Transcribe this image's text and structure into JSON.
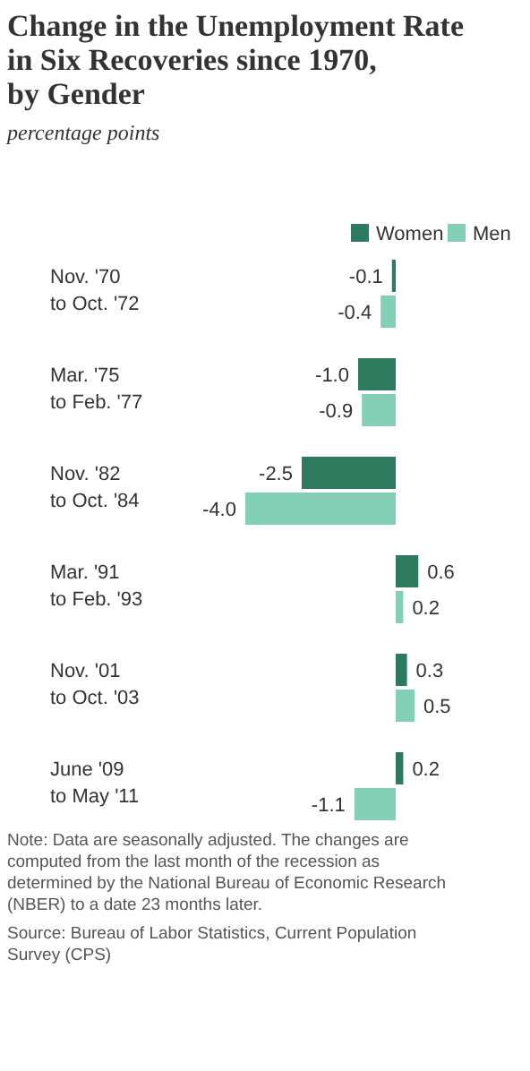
{
  "chart_data": {
    "type": "bar",
    "orientation": "horizontal",
    "title": "Change in the Unemployment Rate\nin Six Recoveries since 1970,\nby Gender",
    "subtitle": "percentage points",
    "categories": [
      "Nov. '70\nto Oct. '72",
      "Mar. '75\nto Feb. '77",
      "Nov. '82\nto Oct. '84",
      "Mar. '91\nto Feb. '93",
      "Nov. '01\nto Oct. '03",
      "June '09\nto May '11"
    ],
    "series": [
      {
        "name": "Women",
        "color": "#2e7a5f",
        "values": [
          -0.1,
          -1.0,
          -2.5,
          0.6,
          0.3,
          0.2
        ],
        "value_labels": [
          "-0.1",
          "-1.0",
          "-2.5",
          "0.6",
          "0.3",
          "0.2"
        ]
      },
      {
        "name": "Men",
        "color": "#82cfb5",
        "values": [
          -0.4,
          -0.9,
          -4.0,
          0.2,
          0.5,
          -1.1
        ],
        "value_labels": [
          "-0.4",
          "-0.9",
          "-4.0",
          "0.2",
          "0.5",
          "-1.1"
        ]
      }
    ],
    "legend": "top right",
    "annotations": [
      "Note: Data are seasonally adjusted. The changes are\ncomputed from the last month of the recession as\ndetermined by the National Bureau of Economic Research\n(NBER)  to a date 23 months later.",
      "Source: Bureau of Labor Statistics, Current Population\nSurvey (CPS)"
    ]
  }
}
